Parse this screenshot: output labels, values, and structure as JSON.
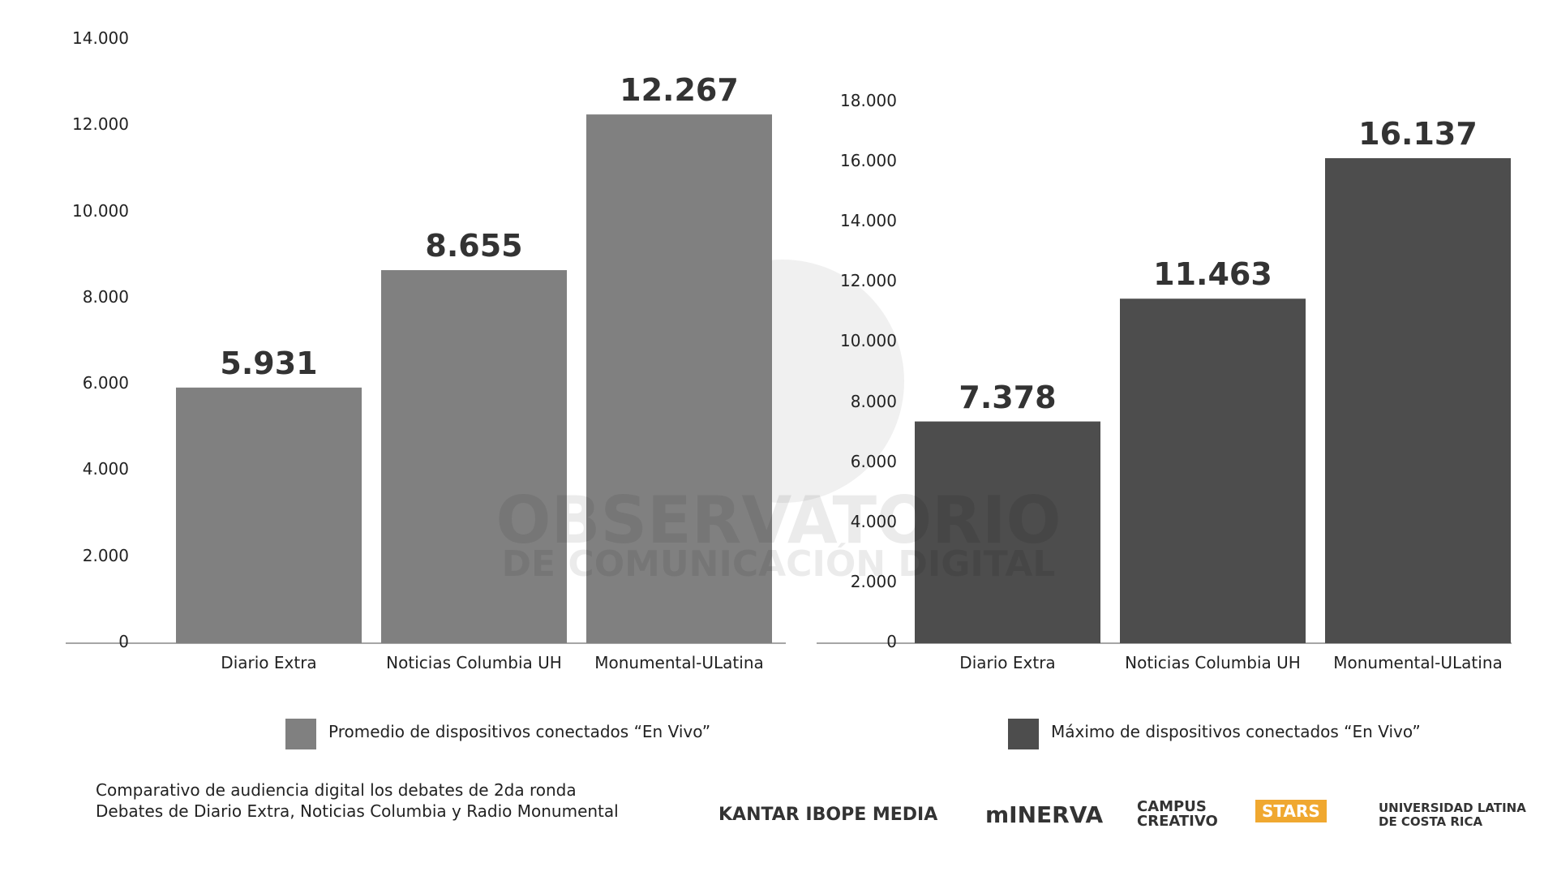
{
  "chart_data": [
    {
      "type": "bar",
      "categories": [
        "Diario Extra",
        "Noticias Columbia UH",
        "Monumental-ULatina"
      ],
      "series": [
        {
          "name": "Promedio de dispositivos conectados “En Vivo”",
          "color": "#808080",
          "values": [
            5931,
            8655,
            12267
          ],
          "value_labels": [
            "5.931",
            "8.655",
            "12.267"
          ]
        }
      ],
      "ylim": [
        0,
        14000
      ],
      "yticks": [
        0,
        {
          "value": 2000,
          "label": "2.000"
        },
        {
          "value": 4000,
          "label": "4.000"
        },
        {
          "value": 6000,
          "label": "6.000"
        },
        {
          "value": 8000,
          "label": "8.000"
        },
        {
          "value": 10000,
          "label": "10.000"
        },
        {
          "value": 12000,
          "label": "12.000"
        },
        {
          "value": 14000,
          "label": "14.000"
        }
      ],
      "grid": false,
      "legend": "bottom"
    },
    {
      "type": "bar",
      "categories": [
        "Diario Extra",
        "Noticias Columbia UH",
        "Monumental-ULatina"
      ],
      "series": [
        {
          "name": "Máximo de dispositivos conectados “En Vivo”",
          "color": "#4d4d4d",
          "values": [
            7378,
            11463,
            16137
          ],
          "value_labels": [
            "7.378",
            "11.463",
            "16.137"
          ]
        }
      ],
      "ylim": [
        0,
        18000
      ],
      "yticks": [
        0,
        {
          "value": 2000,
          "label": "2.000"
        },
        {
          "value": 4000,
          "label": "4.000"
        },
        {
          "value": 6000,
          "label": "6.000"
        },
        {
          "value": 8000,
          "label": "8.000"
        },
        {
          "value": 10000,
          "label": "10.000"
        },
        {
          "value": 12000,
          "label": "12.000"
        },
        {
          "value": 14000,
          "label": "14.000"
        },
        {
          "value": 16000,
          "label": "16.000"
        },
        {
          "value": 18000,
          "label": "18.000"
        }
      ],
      "grid": false,
      "legend": "bottom"
    }
  ],
  "watermark": [
    "OBSERVATORIO",
    "DE COMUNICACIÓN DIGITAL"
  ],
  "footer": [
    "Comparativo de audiencia digital los debates de 2da ronda",
    "Debates de Diario Extra, Noticias Columbia y Radio Monumental"
  ],
  "logos": [
    "KANTAR IBOPE MEDIA",
    "mINERVA",
    "CAMPUS CREATIVO",
    "STARS",
    "UNIVERSIDAD LATINA DE COSTA RICA"
  ]
}
